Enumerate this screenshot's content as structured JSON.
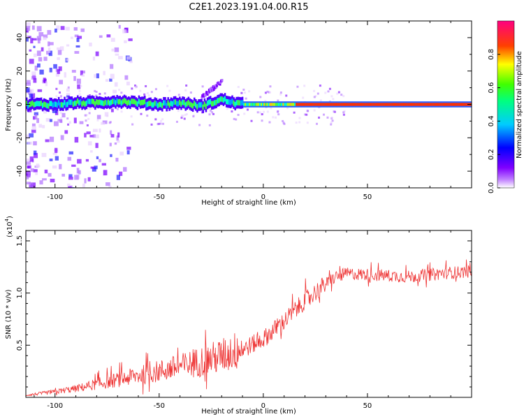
{
  "title": "C2E1.2023.191.04.00.R15",
  "chart_data": [
    {
      "type": "heatmap",
      "xlabel": "Height of straight line (km)",
      "ylabel": "Frequency (Hz)",
      "xlim": [
        -114,
        100
      ],
      "ylim": [
        -50,
        50
      ],
      "xticks": [
        -100,
        -50,
        0,
        50
      ],
      "yticks": [
        -40,
        -20,
        0,
        20,
        40
      ],
      "colorbar": {
        "label": "Normalized spectral amplitude",
        "range": [
          0.0,
          1.0
        ],
        "ticks": [
          0.0,
          0.2,
          0.4,
          0.6,
          0.8
        ],
        "colormap": [
          "#ffffff",
          "#8000ff",
          "#0000ff",
          "#00ffff",
          "#00ff00",
          "#ffff00",
          "#ff0000",
          "#ff0080"
        ]
      },
      "ridge": {
        "description_points_x": [
          -114,
          -100,
          -90,
          -80,
          -70,
          -60,
          -50,
          -40,
          -30,
          -20,
          -15,
          -10,
          0,
          10,
          20,
          40,
          60,
          80,
          100
        ],
        "center_frequency_hz": [
          0,
          0,
          1,
          1,
          2,
          1,
          0,
          1,
          -1,
          3,
          1,
          0,
          0,
          0,
          0,
          0,
          0,
          0,
          0
        ],
        "feature_x": [
          -30,
          -20
        ],
        "feature_freq_hz": [
          5,
          15
        ]
      }
    },
    {
      "type": "line",
      "xlabel": "Height of straight line (km)",
      "ylabel": "SNR (10 * v/v)",
      "y_multiplier_label": "(x10",
      "y_multiplier_exp": "4",
      "y_multiplier_close": ")",
      "xlim": [
        -114,
        100
      ],
      "ylim": [
        0,
        1.6
      ],
      "xticks": [
        -100,
        -50,
        0,
        50
      ],
      "yticks": [
        0.5,
        1.0,
        1.5
      ],
      "ytick_labels": [
        "0.5",
        "1.0",
        "1.5"
      ],
      "series": [
        {
          "color": "#ee3333",
          "trend_x": [
            -114,
            -100,
            -90,
            -80,
            -70,
            -60,
            -50,
            -40,
            -30,
            -20,
            -10,
            0,
            10,
            20,
            30,
            35,
            40,
            50,
            60,
            70,
            80,
            90,
            100
          ],
          "trend_y": [
            0.02,
            0.05,
            0.08,
            0.12,
            0.16,
            0.2,
            0.24,
            0.28,
            0.33,
            0.38,
            0.45,
            0.55,
            0.72,
            0.92,
            1.08,
            1.15,
            1.18,
            1.17,
            1.16,
            1.15,
            1.17,
            1.19,
            1.2
          ]
        }
      ]
    }
  ]
}
